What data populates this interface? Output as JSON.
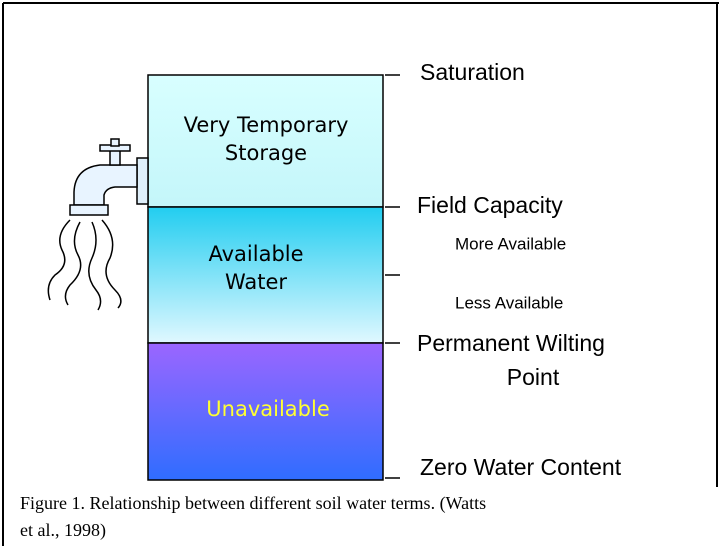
{
  "zones": [
    {
      "lines": [
        "Very Temporary",
        "Storage"
      ]
    },
    {
      "lines": [
        "Available",
        "Water"
      ]
    },
    {
      "lines": [
        "Unavailable"
      ]
    }
  ],
  "levels": {
    "saturation": "Saturation",
    "field_capacity": "Field Capacity",
    "more_available": "More Available",
    "less_available": "Less Available",
    "wilting_point": [
      "Permanent Wilting",
      "Point"
    ],
    "zero": "Zero Water Content"
  },
  "caption": [
    "Figure 1. Relationship between different soil water terms. (Watts",
    "et al., 1998)"
  ]
}
